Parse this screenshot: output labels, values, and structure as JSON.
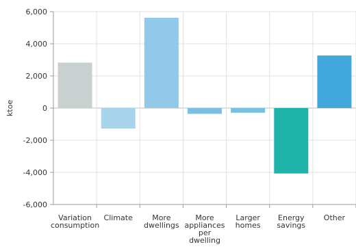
{
  "chart_data": {
    "type": "bar",
    "categories": [
      [
        "Variation",
        "consumption"
      ],
      [
        "Climate"
      ],
      [
        "More",
        "dwellings"
      ],
      [
        "More",
        "appliances",
        "per",
        "dwelling"
      ],
      [
        "Larger",
        "homes"
      ],
      [
        "Energy",
        "savings"
      ],
      [
        "Other"
      ]
    ],
    "values": [
      2830,
      -1280,
      5620,
      -360,
      -290,
      -4070,
      3270
    ],
    "colors": [
      "#c9d1d0",
      "#a8d4ec",
      "#92c9e8",
      "#7bc0e4",
      "#76c0e2",
      "#20b3aa",
      "#42a8db"
    ],
    "ylabel": "ktoe",
    "ylim": [
      -6000,
      6000
    ],
    "yticks": [
      -6000,
      -4000,
      -2000,
      0,
      2000,
      4000,
      6000
    ],
    "ytick_labels": [
      "-6,000",
      "-4,000",
      "-2,000",
      "0",
      "2,000",
      "4,000",
      "6,000"
    ],
    "grid": true
  }
}
